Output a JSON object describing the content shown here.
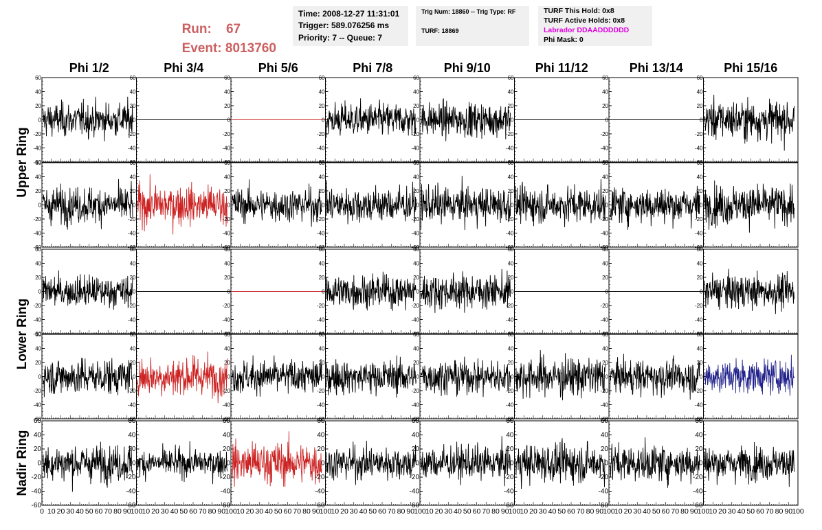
{
  "header": {
    "run_label": "Run:",
    "run_value": "67",
    "event_label": "Event:",
    "event_value": "8013760",
    "time": "Time: 2008-12-27 11:31:01",
    "trigger": "Trigger: 589.076256 ms",
    "priority": "Priority: 7 -- Queue: 7",
    "trig_num": "Trig Num: 18860 -- Trig Type: RF",
    "turf": "TURF: 18869",
    "turf_this_hold": "TURF This Hold: 0x8",
    "turf_active_holds": "TURF Active Holds: 0x8",
    "labrador": "Labrador DDAADDDDDD",
    "phi_mask": "Phi Mask: 0"
  },
  "colors": {
    "run_text": "#cc6060",
    "labrador_text": "#e000e0",
    "trace_default": "#000000",
    "trace_red": "#cc2222",
    "trace_blue": "#22228c"
  },
  "chart_data": {
    "type": "line",
    "columns": [
      "Phi 1/2",
      "Phi 3/4",
      "Phi 5/6",
      "Phi 7/8",
      "Phi 9/10",
      "Phi 11/12",
      "Phi 13/14",
      "Phi 15/16"
    ],
    "row_groups": [
      {
        "label": "Upper Ring",
        "rows": [
          0,
          1
        ]
      },
      {
        "label": "Lower Ring",
        "rows": [
          2,
          3
        ]
      },
      {
        "label": "Nadir Ring",
        "rows": [
          4
        ]
      }
    ],
    "xlim": [
      0,
      100
    ],
    "ylim": [
      -60,
      60
    ],
    "x_ticks": [
      0,
      10,
      20,
      30,
      40,
      50,
      60,
      70,
      80,
      90,
      100
    ],
    "y_ticks": [
      -60,
      -40,
      -20,
      0,
      20,
      40,
      60
    ],
    "trace_style": [
      [
        "black",
        "flat",
        "flat-red",
        "black",
        "black",
        "flat",
        "flat",
        "black"
      ],
      [
        "black",
        "red",
        "black",
        "black",
        "black",
        "black",
        "black",
        "black"
      ],
      [
        "black",
        "flat",
        "flat-red",
        "black",
        "black",
        "flat",
        "flat",
        "black"
      ],
      [
        "black",
        "red",
        "black",
        "black",
        "black",
        "black",
        "black",
        "blue"
      ],
      [
        "black",
        "black",
        "red",
        "black",
        "black",
        "black",
        "black",
        "black"
      ]
    ],
    "noise_rms": [
      [
        12,
        0,
        0,
        12,
        12,
        0,
        0,
        14
      ],
      [
        13,
        14,
        12,
        13,
        13,
        13,
        13,
        14
      ],
      [
        11,
        0,
        0,
        12,
        12,
        0,
        0,
        12
      ],
      [
        13,
        14,
        12,
        12,
        12,
        14,
        12,
        12
      ],
      [
        13,
        10,
        15,
        12,
        12,
        14,
        13,
        12
      ]
    ]
  }
}
